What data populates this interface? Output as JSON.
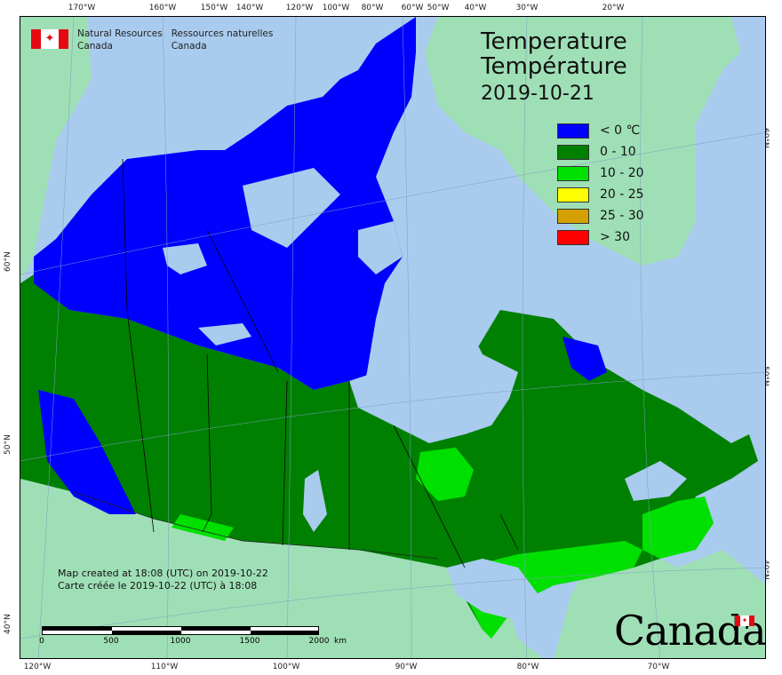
{
  "organization": {
    "name_en_line1": "Natural Resources",
    "name_en_line2": "Canada",
    "name_fr_line1": "Ressources naturelles",
    "name_fr_line2": "Canada"
  },
  "title": {
    "en": "Temperature",
    "fr": "Température",
    "date": "2019-10-21"
  },
  "legend": [
    {
      "label": "< 0 ℃",
      "color": "#0000ff"
    },
    {
      "label": "0 - 10",
      "color": "#008000"
    },
    {
      "label": "10 - 20",
      "color": "#00e000"
    },
    {
      "label": "20 - 25",
      "color": "#ffff00"
    },
    {
      "label": "25 - 30",
      "color": "#d4a000"
    },
    {
      "label": "> 30",
      "color": "#ff0000"
    }
  ],
  "credits": {
    "line_en": "Map created at 18:08 (UTC) on 2019-10-22",
    "line_fr": "Carte créée le 2019-10-22 (UTC) à 18:08"
  },
  "scale": {
    "labels": [
      "0",
      "500",
      "1000",
      "1500",
      "2000"
    ],
    "unit": "km"
  },
  "wordmark": "Canada",
  "graticule": {
    "top": [
      "170°W",
      "160°W",
      "150°W",
      "140°W",
      "120°W",
      "100°W",
      "80°W",
      "60°W",
      "50°W",
      "40°W",
      "30°W",
      "20°W"
    ],
    "bottom": [
      "120°W",
      "110°W",
      "100°W",
      "90°W",
      "80°W",
      "70°W"
    ],
    "left": [
      "60°N",
      "50°N",
      "40°N"
    ],
    "right": [
      "60°N",
      "50°N",
      "40°N"
    ]
  },
  "colors": {
    "ocean": "#a9cbee",
    "foreign_land": "#9fdfb6",
    "lakes": "#a9cbee",
    "boundary": "#000000"
  }
}
